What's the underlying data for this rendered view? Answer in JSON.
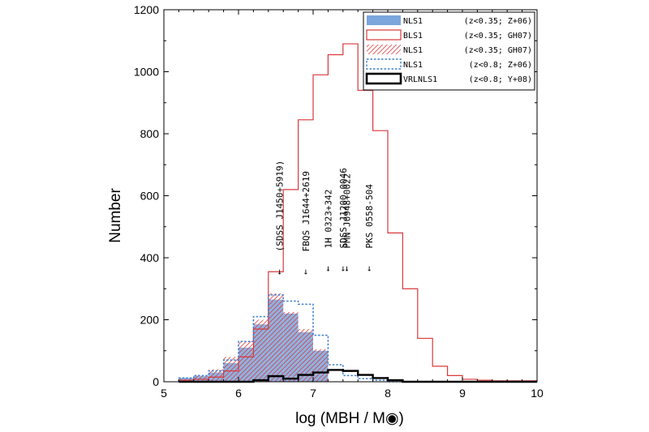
{
  "chart_data": {
    "type": "histogram",
    "xlabel": "log (MBH / M◉)",
    "ylabel": "Number",
    "xlim": [
      5,
      10
    ],
    "ylim": [
      0,
      1200
    ],
    "xticks": [
      "5",
      "6",
      "7",
      "8",
      "9",
      "10"
    ],
    "yticks": [
      "0",
      "200",
      "400",
      "600",
      "800",
      "1000",
      "1200"
    ],
    "bin_edges": [
      5.2,
      5.4,
      5.6,
      5.8,
      6.0,
      6.2,
      6.4,
      6.6,
      6.8,
      7.0,
      7.2,
      7.4,
      7.6,
      7.8,
      8.0,
      8.2,
      8.4,
      8.6,
      8.8,
      9.0,
      9.2,
      9.4,
      9.6,
      9.8,
      10.0
    ],
    "legend_position": "top-right",
    "series": [
      {
        "name": "NLS1",
        "legend_note": "(z<0.35; Z+06)",
        "style": "filled",
        "color": "#7aa6dd",
        "values": [
          12,
          18,
          30,
          60,
          110,
          185,
          265,
          220,
          160,
          100,
          0,
          0,
          0,
          0,
          0,
          0,
          0,
          0,
          0,
          0,
          0,
          0,
          0,
          0
        ]
      },
      {
        "name": "BLS1",
        "legend_note": "(z<0.35; GH07)",
        "style": "step",
        "color": "#d9393b",
        "values": [
          5,
          8,
          15,
          35,
          80,
          170,
          355,
          620,
          845,
          990,
          1055,
          1090,
          940,
          810,
          480,
          300,
          140,
          50,
          20,
          8,
          5,
          3,
          3,
          3
        ]
      },
      {
        "name": "NLS1",
        "legend_note": "(z<0.35; GH07)",
        "style": "hatched",
        "color": "#d9393b",
        "values": [
          10,
          20,
          40,
          80,
          130,
          200,
          285,
          225,
          170,
          105,
          0,
          0,
          0,
          0,
          0,
          0,
          0,
          0,
          0,
          0,
          0,
          0,
          0,
          0
        ]
      },
      {
        "name": "NLS1",
        "legend_note": "(z<0.8; Z+06)",
        "style": "dashed-step",
        "color": "#3f7fd0",
        "values": [
          12,
          20,
          35,
          70,
          130,
          210,
          280,
          260,
          250,
          150,
          55,
          20,
          10,
          5,
          0,
          0,
          0,
          0,
          0,
          0,
          0,
          0,
          0,
          0
        ]
      },
      {
        "name": "VRLNLS1",
        "legend_note": "(z<0.8; Y+08)",
        "style": "thick-step",
        "color": "#000000",
        "values": [
          0,
          0,
          0,
          0,
          0,
          5,
          18,
          10,
          22,
          30,
          38,
          35,
          22,
          12,
          5,
          0,
          0,
          0,
          0,
          0,
          0,
          0,
          0,
          0
        ]
      }
    ],
    "annotations": [
      {
        "text": "(SDSS J1450+5919)",
        "x": 6.55,
        "label_bottom_y": 420,
        "arrow": "↓"
      },
      {
        "text": "FBQS J1644+2619",
        "x": 6.9,
        "label_bottom_y": 420,
        "arrow": "↓"
      },
      {
        "text": "1H 0323+342",
        "x": 7.2,
        "label_bottom_y": 430,
        "arrow": "↓"
      },
      {
        "text": "SDSS J1200-0046",
        "x": 7.4,
        "label_bottom_y": 430,
        "arrow": "↓"
      },
      {
        "text": "PMN J0948+0022",
        "x": 7.45,
        "label_bottom_y": 430,
        "arrow": "↓"
      },
      {
        "text": "PKS 0558-504",
        "x": 7.75,
        "label_bottom_y": 430,
        "arrow": "↓"
      }
    ]
  }
}
